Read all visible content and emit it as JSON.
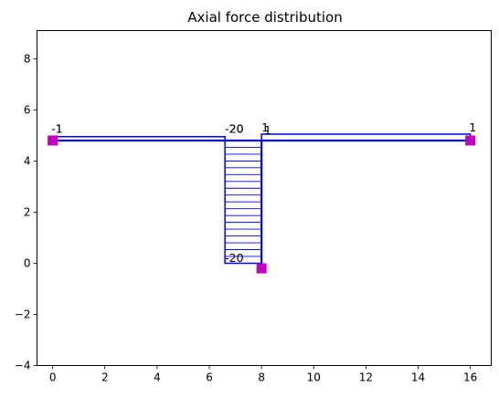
{
  "chart_data": {
    "type": "line",
    "title": "Axial force distribution",
    "xlabel": "",
    "ylabel": "",
    "xlim": [
      -0.6,
      16.8
    ],
    "ylim": [
      -4,
      9.1
    ],
    "xticks": [
      0,
      2,
      4,
      6,
      8,
      10,
      12,
      14,
      16
    ],
    "yticks": [
      -4,
      -2,
      0,
      2,
      4,
      6,
      8
    ],
    "grid": false,
    "colors": {
      "member": "#0000ff",
      "hatch": "#0000ff",
      "support": "#bf00bf",
      "text": "#000000"
    },
    "members": [
      {
        "name": "beam-left",
        "start": [
          0,
          4.8
        ],
        "end": [
          8,
          4.8
        ]
      },
      {
        "name": "beam-right",
        "start": [
          8,
          4.8
        ],
        "end": [
          16,
          4.8
        ]
      },
      {
        "name": "column",
        "start": [
          8,
          0
        ],
        "end": [
          8,
          4.8
        ]
      }
    ],
    "force_diagrams": [
      {
        "name": "beam-left",
        "polygon": [
          [
            0,
            4.8
          ],
          [
            0,
            4.95
          ],
          [
            6.6,
            4.95
          ],
          [
            6.6,
            4.8
          ]
        ],
        "hatch": false
      },
      {
        "name": "beam-right",
        "polygon": [
          [
            8,
            4.8
          ],
          [
            8,
            5.05
          ],
          [
            16,
            5.05
          ],
          [
            16,
            4.8
          ]
        ],
        "hatch": false
      },
      {
        "name": "column",
        "polygon": [
          [
            8,
            0
          ],
          [
            6.6,
            0
          ],
          [
            6.6,
            4.8
          ],
          [
            8,
            4.8
          ]
        ],
        "hatch": true,
        "hatch_count": 17
      }
    ],
    "supports": [
      [
        0,
        4.8
      ],
      [
        8,
        -0.2
      ],
      [
        16,
        4.8
      ]
    ],
    "annotations": [
      {
        "text": "-1",
        "x": -0.05,
        "y": 5.1
      },
      {
        "text": "-1",
        "x": -0.05,
        "y": 5.1
      },
      {
        "text": "-20",
        "x": 6.6,
        "y": 5.1
      },
      {
        "text": "-20",
        "x": 6.6,
        "y": 5.1
      },
      {
        "text": "1",
        "x": 8.0,
        "y": 5.15
      },
      {
        "text": "1",
        "x": 8.1,
        "y": 5.05
      },
      {
        "text": "1",
        "x": 15.95,
        "y": 5.15
      },
      {
        "text": "-20",
        "x": 6.6,
        "y": 0.05
      }
    ]
  }
}
